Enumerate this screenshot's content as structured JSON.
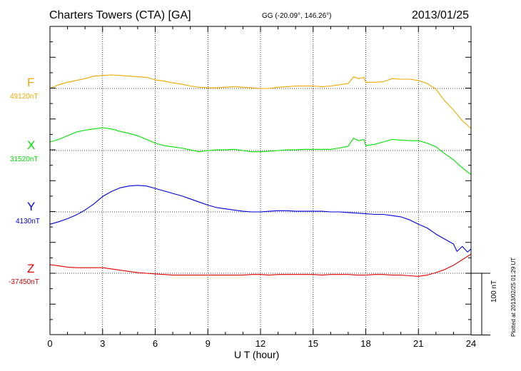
{
  "header": {
    "station": "Charters Towers (CTA)  [GA]",
    "coords": "GG (-20.09°, 146.26°)",
    "date": "2013/01/25"
  },
  "scale_bar_label": "100 nT",
  "plotted_note": "Plotted at 2013/02/25 01:29 UT",
  "chart_data": {
    "type": "line",
    "title": "Charters Towers (CTA)  [GA]",
    "xlabel": "U T (hour)",
    "xlim": [
      0,
      24
    ],
    "x_ticks": [
      0,
      3,
      6,
      9,
      12,
      15,
      18,
      21,
      24
    ],
    "x_tick_labels": [
      "0",
      "3",
      "6",
      "9",
      "12",
      "15",
      "18",
      "21",
      "24"
    ],
    "grid": true,
    "units": "nT",
    "scale_bar_nT": 100,
    "series": [
      {
        "name": "F",
        "baseline_label": "49120nT",
        "baseline": 49120,
        "color": "#f0a800",
        "x": [
          0,
          0.5,
          1,
          1.5,
          2,
          2.5,
          3,
          3.5,
          4,
          4.5,
          5,
          5.5,
          6,
          6.5,
          7,
          7.5,
          8,
          8.5,
          9,
          9.5,
          10,
          10.5,
          11,
          11.5,
          12,
          12.5,
          13,
          13.5,
          14,
          14.5,
          15,
          15.5,
          16,
          16.5,
          17,
          17.3,
          17.6,
          17.9,
          18,
          18.5,
          19,
          19.5,
          20,
          20.5,
          21,
          21.5,
          22,
          22.5,
          23,
          23.5,
          24
        ],
        "values": [
          49120,
          49126,
          49130,
          49133,
          49136,
          49140,
          49141,
          49142,
          49141,
          49140,
          49139,
          49138,
          49134,
          49132,
          49129,
          49127,
          49124,
          49122,
          49121,
          49121,
          49122,
          49123,
          49122,
          49121,
          49120,
          49120,
          49122,
          49123,
          49124,
          49124,
          49124,
          49123,
          49124,
          49126,
          49128,
          49139,
          49136,
          49138,
          49130,
          49130,
          49131,
          49136,
          49135,
          49135,
          49133,
          49128,
          49119,
          49100,
          49085,
          49068,
          49055
        ]
      },
      {
        "name": "X",
        "baseline_label": "31520nT",
        "baseline": 31520,
        "color": "#00e000",
        "x": [
          0,
          0.5,
          1,
          1.5,
          2,
          2.5,
          3,
          3.5,
          4,
          4.5,
          5,
          5.5,
          6,
          6.5,
          7,
          7.5,
          8,
          8.5,
          9,
          9.5,
          10,
          10.5,
          11,
          11.5,
          12,
          12.5,
          13,
          13.5,
          14,
          14.5,
          15,
          15.5,
          16,
          16.5,
          17,
          17.3,
          17.6,
          17.9,
          18,
          18.5,
          19,
          19.5,
          20,
          20.5,
          21,
          21.5,
          22,
          22.5,
          23,
          23.5,
          24
        ],
        "values": [
          31534,
          31538,
          31544,
          31550,
          31553,
          31555,
          31557,
          31555,
          31551,
          31548,
          31544,
          31538,
          31532,
          31528,
          31526,
          31524,
          31521,
          31518,
          31520,
          31521,
          31521,
          31522,
          31520,
          31518,
          31518,
          31519,
          31520,
          31521,
          31521,
          31522,
          31522,
          31522,
          31522,
          31524,
          31527,
          31540,
          31536,
          31538,
          31528,
          31530,
          31534,
          31538,
          31537,
          31536,
          31536,
          31532,
          31526,
          31515,
          31505,
          31492,
          31481
        ]
      },
      {
        "name": "Y",
        "baseline_label": "4130nT",
        "baseline": 4130,
        "color": "#0000e0",
        "x": [
          0,
          0.5,
          1,
          1.5,
          2,
          2.5,
          3,
          3.5,
          4,
          4.5,
          5,
          5.5,
          6,
          6.5,
          7,
          7.5,
          8,
          8.5,
          9,
          9.5,
          10,
          10.5,
          11,
          11.5,
          12,
          12.5,
          13,
          13.5,
          14,
          14.5,
          15,
          15.5,
          16,
          16.5,
          17,
          17.5,
          18,
          18.5,
          19,
          19.5,
          20,
          20.5,
          21,
          21.5,
          22,
          22.5,
          23,
          23.2,
          23.5,
          23.8,
          24
        ],
        "values": [
          4110,
          4114,
          4119,
          4125,
          4133,
          4143,
          4155,
          4163,
          4169,
          4172,
          4173,
          4172,
          4168,
          4164,
          4160,
          4156,
          4151,
          4146,
          4141,
          4137,
          4135,
          4133,
          4131,
          4130,
          4130,
          4131,
          4132,
          4132,
          4131,
          4131,
          4131,
          4131,
          4130,
          4130,
          4129,
          4128,
          4127,
          4126,
          4126,
          4124,
          4122,
          4117,
          4110,
          4104,
          4094,
          4086,
          4078,
          4066,
          4074,
          4065,
          4070
        ]
      },
      {
        "name": "Z",
        "baseline_label": "-37450nT",
        "baseline": -37450,
        "color": "#e00000",
        "x": [
          0,
          0.5,
          1,
          1.5,
          2,
          2.5,
          3,
          3.5,
          4,
          4.5,
          5,
          5.5,
          6,
          6.5,
          7,
          7.5,
          8,
          8.5,
          9,
          9.5,
          10,
          10.5,
          11,
          11.5,
          12,
          12.5,
          13,
          13.5,
          14,
          14.5,
          15,
          15.5,
          16,
          16.5,
          17,
          17.5,
          18,
          18.5,
          19,
          19.5,
          20,
          20.5,
          21,
          21.5,
          22,
          22.5,
          23,
          23.5,
          24
        ],
        "values": [
          -37436,
          -37438,
          -37440,
          -37441,
          -37441,
          -37441,
          -37441,
          -37443,
          -37445,
          -37447,
          -37449,
          -37450,
          -37451,
          -37452,
          -37453,
          -37453,
          -37453,
          -37453,
          -37453,
          -37453,
          -37453,
          -37453,
          -37453,
          -37452,
          -37452,
          -37453,
          -37452,
          -37452,
          -37452,
          -37452,
          -37452,
          -37453,
          -37452,
          -37452,
          -37452,
          -37453,
          -37453,
          -37452,
          -37452,
          -37453,
          -37453,
          -37454,
          -37455,
          -37453,
          -37449,
          -37444,
          -37437,
          -37428,
          -37419
        ]
      }
    ]
  }
}
